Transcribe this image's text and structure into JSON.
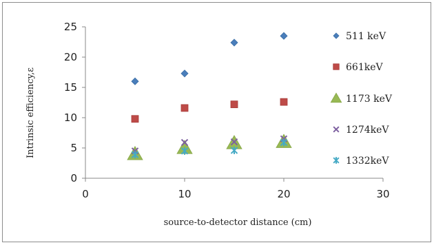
{
  "chart_data": {
    "type": "scatter",
    "title": "",
    "xlabel": "source-to-detector distance (cm)",
    "ylabel": "Intrinsic efficiency,ε",
    "xlim": [
      0,
      30
    ],
    "ylim": [
      0,
      25
    ],
    "xticks": [
      "0",
      "10",
      "20",
      "30"
    ],
    "yticks": [
      "0",
      "5",
      "10",
      "15",
      "20",
      "25"
    ],
    "grid": false,
    "legend_position": "right",
    "series": [
      {
        "name": "511 keV",
        "marker": "diamond",
        "color": "#4a7ebb",
        "x": [
          5,
          10,
          15,
          20
        ],
        "y": [
          16.0,
          17.3,
          22.4,
          23.5
        ]
      },
      {
        "name": "661keV",
        "marker": "square",
        "color": "#be4b48",
        "x": [
          5,
          10,
          15,
          20
        ],
        "y": [
          9.8,
          11.6,
          12.2,
          12.6
        ]
      },
      {
        "name": "1173 keV",
        "marker": "triangle",
        "color": "#98b954",
        "x": [
          5,
          10,
          15,
          20
        ],
        "y": [
          4.0,
          5.0,
          5.8,
          6.0
        ]
      },
      {
        "name": "1274keV",
        "marker": "x",
        "color": "#7d60a0",
        "x": [
          5,
          10,
          15,
          20
        ],
        "y": [
          4.5,
          5.9,
          6.0,
          6.5
        ]
      },
      {
        "name": "1332keV",
        "marker": "star",
        "color": "#46aac5",
        "x": [
          5,
          10,
          15,
          20
        ],
        "y": [
          3.9,
          4.5,
          4.6,
          5.9
        ]
      }
    ]
  }
}
